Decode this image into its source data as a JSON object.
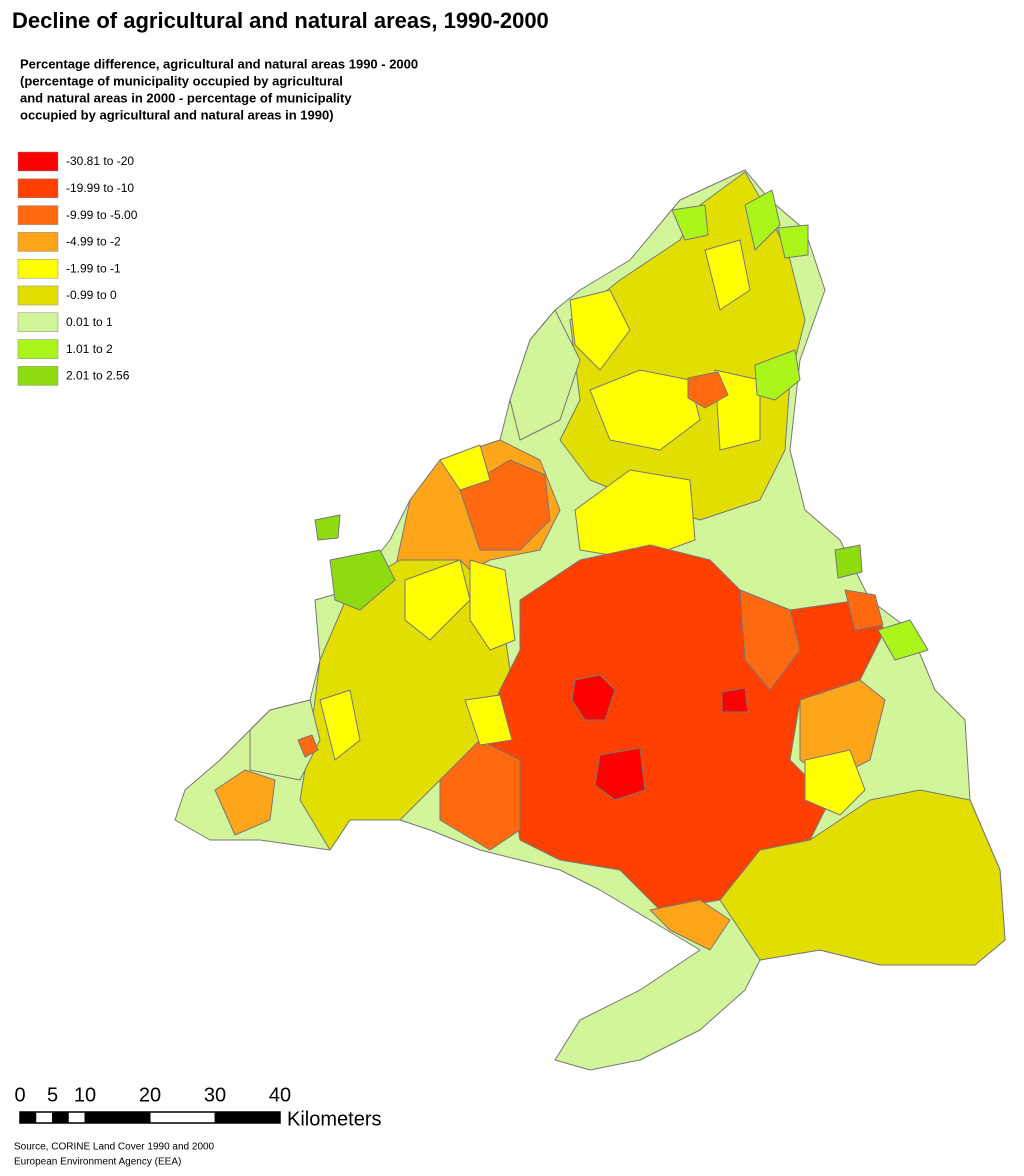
{
  "title": "Decline of agricultural and natural areas, 1990-2000",
  "subtitle_lines": [
    "Percentage difference, agricultural and natural areas 1990 - 2000",
    "(percentage of municipality occupied by agricultural",
    "and natural areas in 2000 - percentage of  municipality",
    "occupied by agricultural and natural areas in 1990)"
  ],
  "legend": {
    "items": [
      {
        "label": "-30.81 to -20",
        "color": "#ff0000"
      },
      {
        "label": "-19.99 to -10",
        "color": "#ff4000"
      },
      {
        "label": "-9.99 to -5.00",
        "color": "#ff6a10"
      },
      {
        "label": "-4.99 to -2",
        "color": "#ffa51a"
      },
      {
        "label": "-1.99 to -1",
        "color": "#ffff00"
      },
      {
        "label": "-0.99 to 0",
        "color": "#e2df00"
      },
      {
        "label": "0.01 to 1",
        "color": "#d2f59a"
      },
      {
        "label": "1.01 to 2",
        "color": "#aaf51a"
      },
      {
        "label": "2.01 to 2.56",
        "color": "#8edc10"
      }
    ]
  },
  "scale_bar": {
    "ticks": [
      0,
      5,
      10,
      20,
      30,
      40
    ],
    "unit": "Kilometers"
  },
  "source_lines": [
    "Source, CORINE Land Cover 1990 and 2000",
    "European Environment Agency (EEA)"
  ]
}
